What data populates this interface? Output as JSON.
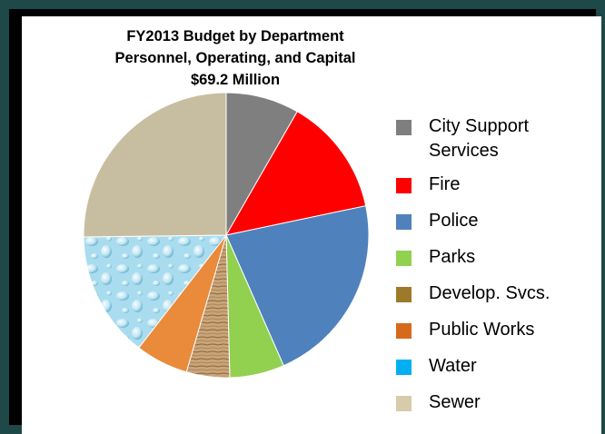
{
  "chart_data": {
    "type": "pie",
    "title_lines": [
      "FY2013 Budget by Department",
      "Personnel, Operating, and Capital",
      "$69.2 Million"
    ],
    "legend_position": "right",
    "slices": [
      {
        "label": "City Support Services",
        "label_lines": [
          "City Support",
          "Services"
        ],
        "value": 8.3,
        "color": "#7f7f7f"
      },
      {
        "label": "Fire",
        "value": 13.4,
        "color": "#ff0000"
      },
      {
        "label": "Police",
        "value": 21.7,
        "color": "#4f81bd"
      },
      {
        "label": "Parks",
        "value": 6.2,
        "color": "#92d050"
      },
      {
        "label": "Develop. Svcs.",
        "value": 4.9,
        "color": "#c8a77a",
        "legend_color": "#9c7a2a",
        "fill": "wood"
      },
      {
        "label": "Public Works",
        "value": 6.0,
        "color": "#e98b3a",
        "legend_color": "#d66a1a"
      },
      {
        "label": "Water",
        "value": 14.3,
        "color": "#b9e4f2",
        "legend_color": "#00b0f0",
        "fill": "water"
      },
      {
        "label": "Sewer",
        "value": 25.2,
        "color": "#c7bda0",
        "legend_color": "#d6ccaa"
      }
    ]
  }
}
